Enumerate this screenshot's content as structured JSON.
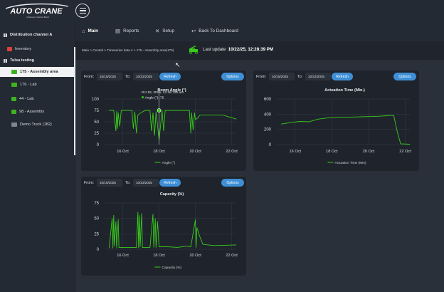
{
  "brand": {
    "logo_text": "AUTO CRANE",
    "logo_tagline": "A Ramsey Industries Brand"
  },
  "sidebar": {
    "channel": "Distribution channel A",
    "inventory": "Inventory",
    "group": "Tulsa testing",
    "items": [
      {
        "label": "175 - Assembly area",
        "active": true,
        "icon": "truck-icon"
      },
      {
        "label": "176 - Lab",
        "icon": "truck-icon"
      },
      {
        "label": "44 - Lab",
        "icon": "crane-icon"
      },
      {
        "label": "98 - Assembly",
        "icon": "crane-icon"
      },
      {
        "label": "Demo Truck (182)",
        "icon": "truck-icon"
      }
    ]
  },
  "nav": {
    "main": "Main",
    "reports": "Reports",
    "setup": "Setup",
    "back": "Back To Dashboard"
  },
  "breadcrumb": "Main  >  Central  >  Timeseries data 4  >  175 - Assembly area(175)",
  "last_update": {
    "label": "Last update",
    "value": "10/22/25, 12:28:39 PM"
  },
  "colors": {
    "series": "#39c91c",
    "accent": "#3e8fd6",
    "card": "#1f242c"
  },
  "chart1": {
    "from_label": "From:",
    "from": "10/15/2025",
    "to_label": "To:",
    "to": "10/22/2025",
    "refresh": "Refresh",
    "options": "Options"
  },
  "chart2": {
    "from_label": "From:",
    "from": "10/15/2025",
    "to_label": "To:",
    "to": "10/22/2025",
    "refresh": "Refresh",
    "options": "Options"
  },
  "chart3": {
    "from_label": "From:",
    "from": "10/15/2025",
    "to_label": "To:",
    "to": "10/22/2025",
    "refresh": "Refresh",
    "options": "Options"
  },
  "chart_data": [
    {
      "type": "line",
      "title": "Boom Angle (°)",
      "xlabel": "",
      "ylabel": "",
      "x_ticks": [
        "16 Oct",
        "18 Oct",
        "20 Oct",
        "22 Oct"
      ],
      "y_ticks": [
        0,
        25,
        50,
        75,
        100
      ],
      "ylim": [
        0,
        100
      ],
      "grid": true,
      "legend": "bottom",
      "tooltip": {
        "date": "Oct 18, 2025, 12:28:726 am",
        "series": "Angle (°)",
        "value": "75"
      },
      "series": [
        {
          "name": "Angle (°)",
          "points": [
            [
              "Oct 15 06:00",
              75
            ],
            [
              "Oct 15 12:00",
              75
            ],
            [
              "Oct 15 15:00",
              30
            ],
            [
              "Oct 15 16:00",
              73
            ],
            [
              "Oct 15 17:00",
              35
            ],
            [
              "Oct 15 18:00",
              70
            ],
            [
              "Oct 15 20:00",
              40
            ],
            [
              "Oct 15 22:00",
              75
            ],
            [
              "Oct 16 00:00",
              75
            ],
            [
              "Oct 16 12:00",
              75
            ],
            [
              "Oct 16 14:00",
              35
            ],
            [
              "Oct 16 16:00",
              72
            ],
            [
              "Oct 16 18:00",
              25
            ],
            [
              "Oct 16 20:00",
              65
            ],
            [
              "Oct 17 00:00",
              70
            ],
            [
              "Oct 17 06:00",
              75
            ],
            [
              "Oct 17 12:00",
              75
            ],
            [
              "Oct 17 14:00",
              30
            ],
            [
              "Oct 17 16:00",
              70
            ],
            [
              "Oct 17 18:00",
              20
            ],
            [
              "Oct 17 20:00",
              72
            ],
            [
              "Oct 18 00:00",
              10
            ],
            [
              "Oct 18 04:00",
              75
            ],
            [
              "Oct 18 06:00",
              30
            ],
            [
              "Oct 18 08:00",
              75
            ],
            [
              "Oct 18 12:00",
              75
            ],
            [
              "Oct 19 12:00",
              75
            ],
            [
              "Oct 19 16:00",
              75
            ],
            [
              "Oct 19 18:00",
              25
            ],
            [
              "Oct 19 19:00",
              70
            ],
            [
              "Oct 19 21:00",
              32
            ],
            [
              "Oct 19 23:00",
              70
            ],
            [
              "Oct 20 00:00",
              55
            ],
            [
              "Oct 20 03:00",
              58
            ],
            [
              "Oct 20 06:00",
              65
            ],
            [
              "Oct 20 12:00",
              65
            ],
            [
              "Oct 21 12:00",
              65
            ],
            [
              "Oct 22 06:00",
              56
            ]
          ]
        }
      ]
    },
    {
      "type": "line",
      "title": "Actuation Time (Min.)",
      "xlabel": "",
      "ylabel": "",
      "x_ticks": [
        "16 Oct",
        "18 Oct",
        "20 Oct",
        "22 Oct"
      ],
      "y_ticks": [
        0,
        200,
        400,
        600
      ],
      "ylim": [
        0,
        600
      ],
      "grid": true,
      "legend": "bottom",
      "series": [
        {
          "name": "Actuation Time (Min)",
          "points": [
            [
              "Oct 15 06:00",
              270
            ],
            [
              "Oct 15 18:00",
              290
            ],
            [
              "Oct 16 06:00",
              305
            ],
            [
              "Oct 16 18:00",
              300
            ],
            [
              "Oct 17 06:00",
              335
            ],
            [
              "Oct 17 18:00",
              350
            ],
            [
              "Oct 18 00:00",
              355
            ],
            [
              "Oct 18 12:00",
              360
            ],
            [
              "Oct 19 00:00",
              362
            ],
            [
              "Oct 19 12:00",
              365
            ],
            [
              "Oct 20 00:00",
              368
            ],
            [
              "Oct 20 12:00",
              372
            ],
            [
              "Oct 21 00:00",
              380
            ],
            [
              "Oct 21 06:00",
              385
            ],
            [
              "Oct 21 09:00",
              380
            ],
            [
              "Oct 21 14:00",
              150
            ],
            [
              "Oct 21 18:00",
              10
            ],
            [
              "Oct 22 06:00",
              5
            ]
          ]
        }
      ]
    },
    {
      "type": "line",
      "title": "Capacity (%)",
      "xlabel": "",
      "ylabel": "",
      "x_ticks": [
        "16 Oct",
        "18 Oct",
        "20 Oct",
        "22 Oct"
      ],
      "y_ticks": [
        0,
        25,
        50,
        75
      ],
      "ylim": [
        0,
        75
      ],
      "grid": true,
      "legend": "bottom",
      "series": [
        {
          "name": "Capacity (%)",
          "points": [
            [
              "Oct 15 06:00",
              2
            ],
            [
              "Oct 15 10:00",
              50
            ],
            [
              "Oct 15 11:00",
              2
            ],
            [
              "Oct 15 12:00",
              55
            ],
            [
              "Oct 15 13:00",
              5
            ],
            [
              "Oct 15 15:00",
              45
            ],
            [
              "Oct 15 16:00",
              2
            ],
            [
              "Oct 15 18:00",
              48
            ],
            [
              "Oct 15 19:00",
              3
            ],
            [
              "Oct 16 00:00",
              3
            ],
            [
              "Oct 16 18:00",
              3
            ],
            [
              "Oct 16 20:00",
              60
            ],
            [
              "Oct 16 21:00",
              2
            ],
            [
              "Oct 16 22:00",
              55
            ],
            [
              "Oct 16 23:00",
              4
            ],
            [
              "Oct 17 01:00",
              58
            ],
            [
              "Oct 17 02:00",
              3
            ],
            [
              "Oct 17 12:00",
              3
            ],
            [
              "Oct 17 16:00",
              57
            ],
            [
              "Oct 17 17:00",
              3
            ],
            [
              "Oct 17 19:00",
              50
            ],
            [
              "Oct 17 20:00",
              3
            ],
            [
              "Oct 17 22:00",
              45
            ],
            [
              "Oct 18 00:00",
              4
            ],
            [
              "Oct 18 12:00",
              4
            ],
            [
              "Oct 19 00:00",
              3
            ],
            [
              "Oct 19 12:00",
              5
            ],
            [
              "Oct 19 18:00",
              4
            ],
            [
              "Oct 20 00:00",
              48
            ],
            [
              "Oct 20 01:00",
              3
            ],
            [
              "Oct 20 02:00",
              35
            ],
            [
              "Oct 20 06:00",
              20
            ],
            [
              "Oct 20 10:00",
              8
            ],
            [
              "Oct 21 00:00",
              6
            ],
            [
              "Oct 22 06:00",
              7
            ]
          ]
        }
      ]
    }
  ]
}
